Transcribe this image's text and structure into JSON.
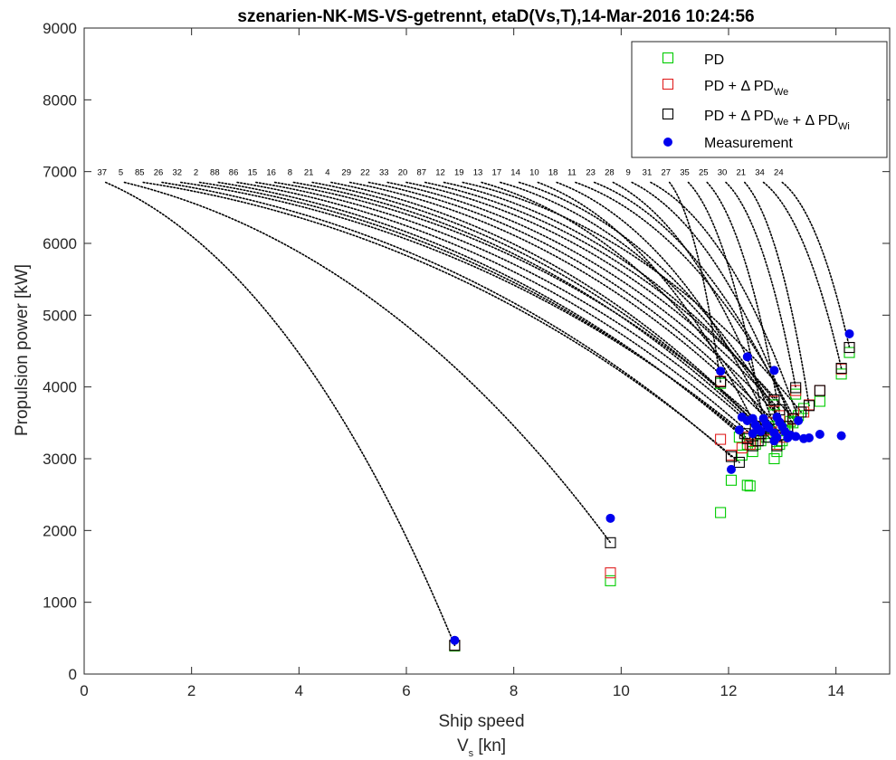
{
  "chart_data": {
    "type": "scatter",
    "title": "szenarien-NK-MS-VS-getrennt, etaD(Vs,T),14-Mar-2016 10:24:56",
    "xlabel_line1": "Ship speed",
    "xlabel_line2_main": "V",
    "xlabel_line2_sub": "s",
    "xlabel_line2_rest": " [kn]",
    "ylabel": "Propulsion power [kW]",
    "xlim": [
      0,
      15
    ],
    "ylim": [
      0,
      9000
    ],
    "xticks": [
      0,
      2,
      4,
      6,
      8,
      10,
      12,
      14
    ],
    "yticks": [
      0,
      1000,
      2000,
      3000,
      4000,
      5000,
      6000,
      7000,
      8000,
      9000
    ],
    "grid": false,
    "legend_position": "top-right",
    "legend": [
      {
        "key": "pd",
        "parts": [
          {
            "t": "PD"
          }
        ],
        "color": "#00cc00",
        "marker": "square"
      },
      {
        "key": "pdwe",
        "parts": [
          {
            "t": "PD + Δ PD"
          },
          {
            "t": "We",
            "sub": true
          }
        ],
        "color": "#e02020",
        "marker": "square"
      },
      {
        "key": "pdwewi",
        "parts": [
          {
            "t": "PD + Δ PD"
          },
          {
            "t": "We",
            "sub": true
          },
          {
            "t": " + Δ PD"
          },
          {
            "t": "Wi",
            "sub": true
          }
        ],
        "color": "#000000",
        "marker": "square"
      },
      {
        "key": "meas",
        "parts": [
          {
            "t": "Measurement"
          }
        ],
        "color": "#0000ee",
        "marker": "circle"
      }
    ],
    "label_y": 7000,
    "scenario_labels": [
      "37",
      "5",
      "85",
      "26",
      "32",
      "2",
      "88",
      "86",
      "15",
      "16",
      "8",
      "21",
      "4",
      "29",
      "22",
      "33",
      "20",
      "87",
      "12",
      "19",
      "13",
      "17",
      "14",
      "10",
      "18",
      "11",
      "23",
      "28",
      "9",
      "31",
      "27",
      "35",
      "25",
      "30",
      "21",
      "34",
      "24"
    ],
    "label_anchor_x": [
      0.4,
      0.75,
      1.1,
      1.45,
      1.8,
      2.15,
      2.5,
      2.85,
      3.2,
      3.55,
      3.9,
      4.25,
      4.6,
      4.95,
      5.3,
      5.65,
      6.0,
      6.35,
      6.7,
      7.05,
      7.4,
      7.75,
      8.1,
      8.45,
      8.8,
      9.15,
      9.5,
      9.85,
      10.2,
      10.55,
      10.9,
      11.25,
      11.6,
      11.95,
      12.3,
      12.65,
      13.0
    ],
    "series": [
      {
        "name": "PD",
        "key": "pd",
        "color": "#00cc00",
        "marker": "square",
        "points": [
          [
            6.9,
            390
          ],
          [
            9.8,
            1300
          ],
          [
            11.85,
            2250
          ],
          [
            12.05,
            2700
          ],
          [
            12.35,
            2630
          ],
          [
            12.4,
            2620
          ],
          [
            12.25,
            3050
          ],
          [
            12.45,
            3100
          ],
          [
            12.5,
            3200
          ],
          [
            12.6,
            3250
          ],
          [
            12.65,
            3350
          ],
          [
            12.7,
            3300
          ],
          [
            12.75,
            3500
          ],
          [
            12.85,
            3000
          ],
          [
            12.9,
            3100
          ],
          [
            12.95,
            3200
          ],
          [
            13.0,
            3250
          ],
          [
            13.05,
            3450
          ],
          [
            12.8,
            3450
          ],
          [
            12.35,
            3200
          ],
          [
            12.55,
            3400
          ],
          [
            13.1,
            3400
          ],
          [
            13.2,
            3500
          ],
          [
            13.3,
            3600
          ],
          [
            13.4,
            3700
          ],
          [
            13.7,
            3800
          ],
          [
            14.1,
            4180
          ],
          [
            14.25,
            4480
          ],
          [
            11.85,
            4050
          ],
          [
            13.25,
            3900
          ],
          [
            12.85,
            3750
          ],
          [
            13.15,
            3520
          ],
          [
            12.2,
            3300
          ],
          [
            12.6,
            3350
          ]
        ]
      },
      {
        "name": "PD + Δ PDWe",
        "key": "pdwe",
        "color": "#e02020",
        "marker": "square",
        "points": [
          [
            6.9,
            400
          ],
          [
            9.8,
            1410
          ],
          [
            11.85,
            3270
          ],
          [
            12.05,
            3050
          ],
          [
            12.25,
            3150
          ],
          [
            12.4,
            3200
          ],
          [
            12.5,
            3250
          ],
          [
            12.6,
            3350
          ],
          [
            12.7,
            3400
          ],
          [
            12.85,
            3800
          ],
          [
            12.9,
            3200
          ],
          [
            13.0,
            3300
          ],
          [
            13.1,
            3450
          ],
          [
            13.25,
            3950
          ],
          [
            13.4,
            3650
          ],
          [
            13.5,
            3750
          ],
          [
            13.7,
            3950
          ],
          [
            14.1,
            4250
          ],
          [
            14.25,
            4550
          ],
          [
            11.85,
            4080
          ],
          [
            12.8,
            3500
          ],
          [
            12.95,
            3600
          ],
          [
            13.2,
            3550
          ],
          [
            12.35,
            3300
          ],
          [
            12.55,
            3450
          ]
        ]
      },
      {
        "name": "PD + Δ PDWe + Δ PDWi",
        "key": "pdwewi",
        "color": "#000000",
        "marker": "square",
        "points": [
          [
            6.9,
            400
          ],
          [
            9.8,
            1830
          ],
          [
            12.05,
            3030
          ],
          [
            12.2,
            2950
          ],
          [
            11.85,
            4070
          ],
          [
            12.35,
            3280
          ],
          [
            12.45,
            3180
          ],
          [
            12.55,
            3250
          ],
          [
            12.6,
            3350
          ],
          [
            12.7,
            3420
          ],
          [
            12.85,
            3820
          ],
          [
            12.9,
            3180
          ],
          [
            13.0,
            3330
          ],
          [
            13.1,
            3450
          ],
          [
            13.25,
            3990
          ],
          [
            13.35,
            3650
          ],
          [
            13.5,
            3740
          ],
          [
            13.7,
            3950
          ],
          [
            14.1,
            4260
          ],
          [
            14.25,
            4550
          ],
          [
            12.8,
            3550
          ],
          [
            12.95,
            3680
          ],
          [
            13.2,
            3560
          ],
          [
            12.3,
            3350
          ],
          [
            12.5,
            3450
          ],
          [
            12.75,
            3300
          ]
        ]
      },
      {
        "name": "Measurement",
        "key": "meas",
        "color": "#0000ee",
        "marker": "circle",
        "points": [
          [
            6.9,
            470
          ],
          [
            9.8,
            2170
          ],
          [
            12.05,
            2850
          ],
          [
            11.85,
            4220
          ],
          [
            12.35,
            4420
          ],
          [
            12.85,
            4230
          ],
          [
            14.25,
            4740
          ],
          [
            12.25,
            3580
          ],
          [
            12.35,
            3530
          ],
          [
            12.45,
            3560
          ],
          [
            12.5,
            3470
          ],
          [
            12.55,
            3420
          ],
          [
            12.6,
            3380
          ],
          [
            12.45,
            3350
          ],
          [
            12.7,
            3480
          ],
          [
            12.75,
            3430
          ],
          [
            12.85,
            3360
          ],
          [
            12.9,
            3300
          ],
          [
            12.85,
            3250
          ],
          [
            12.95,
            3510
          ],
          [
            13.0,
            3450
          ],
          [
            13.05,
            3380
          ],
          [
            13.15,
            3330
          ],
          [
            13.25,
            3310
          ],
          [
            13.3,
            3530
          ],
          [
            13.4,
            3280
          ],
          [
            13.5,
            3290
          ],
          [
            13.7,
            3340
          ],
          [
            14.1,
            3320
          ],
          [
            12.2,
            3400
          ],
          [
            12.9,
            3580
          ],
          [
            13.1,
            3290
          ],
          [
            12.65,
            3560
          ]
        ]
      }
    ],
    "connectors": [
      {
        "label": "37",
        "to": [
          6.9,
          400
        ]
      },
      {
        "label": "5",
        "to": [
          9.8,
          1830
        ]
      },
      {
        "label": "85",
        "to": [
          12.2,
          2950
        ]
      },
      {
        "label": "26",
        "to": [
          12.05,
          3030
        ]
      },
      {
        "label": "32",
        "to": [
          12.3,
          3350
        ]
      },
      {
        "label": "2",
        "to": [
          12.35,
          3280
        ]
      },
      {
        "label": "88",
        "to": [
          12.45,
          3180
        ]
      },
      {
        "label": "86",
        "to": [
          12.55,
          3250
        ]
      },
      {
        "label": "15",
        "to": [
          12.6,
          3350
        ]
      },
      {
        "label": "16",
        "to": [
          12.7,
          3420
        ]
      },
      {
        "label": "8",
        "to": [
          12.5,
          3450
        ]
      },
      {
        "label": "21",
        "to": [
          12.75,
          3300
        ]
      },
      {
        "label": "4",
        "to": [
          12.9,
          3180
        ]
      },
      {
        "label": "29",
        "to": [
          13.0,
          3330
        ]
      },
      {
        "label": "22",
        "to": [
          12.8,
          3550
        ]
      },
      {
        "label": "33",
        "to": [
          13.1,
          3450
        ]
      },
      {
        "label": "20",
        "to": [
          12.95,
          3680
        ]
      },
      {
        "label": "87",
        "to": [
          13.2,
          3560
        ]
      },
      {
        "label": "12",
        "to": [
          12.85,
          3820
        ]
      },
      {
        "label": "19",
        "to": [
          13.35,
          3650
        ]
      },
      {
        "label": "13",
        "to": [
          12.9,
          3300
        ]
      },
      {
        "label": "17",
        "to": [
          13.0,
          3500
        ]
      },
      {
        "label": "14",
        "to": [
          13.1,
          3400
        ]
      },
      {
        "label": "10",
        "to": [
          12.6,
          3300
        ]
      },
      {
        "label": "18",
        "to": [
          12.8,
          3420
        ]
      },
      {
        "label": "11",
        "to": [
          13.25,
          3520
        ]
      },
      {
        "label": "23",
        "to": [
          13.15,
          3600
        ]
      },
      {
        "label": "28",
        "to": [
          12.95,
          3250
        ]
      },
      {
        "label": "9",
        "to": [
          13.2,
          3450
        ]
      },
      {
        "label": "31",
        "to": [
          13.3,
          3550
        ]
      },
      {
        "label": "27",
        "to": [
          11.85,
          4070
        ]
      },
      {
        "label": "35",
        "to": [
          12.65,
          3500
        ]
      },
      {
        "label": "25",
        "to": [
          13.0,
          3400
        ]
      },
      {
        "label": "30",
        "to": [
          13.25,
          3990
        ]
      },
      {
        "label": "21",
        "to": [
          13.5,
          3740
        ]
      },
      {
        "label": "34",
        "to": [
          14.1,
          4260
        ]
      },
      {
        "label": "24",
        "to": [
          14.25,
          4550
        ]
      }
    ]
  }
}
